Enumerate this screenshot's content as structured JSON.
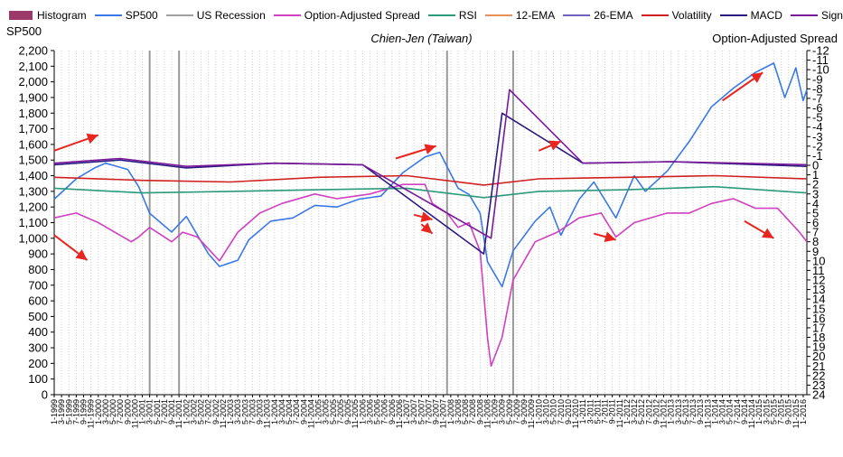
{
  "chart_data": {
    "type": "line",
    "title": "Chien-Jen (Taiwan)",
    "legend": [
      {
        "name": "Histogram",
        "color": "#9b3a6a",
        "style": "box"
      },
      {
        "name": "SP500",
        "color": "#3a78e8",
        "style": "line"
      },
      {
        "name": "US Recession",
        "color": "#a0a0a0",
        "style": "line"
      },
      {
        "name": "Option-Adjusted Spread",
        "color": "#d040c0",
        "style": "line"
      },
      {
        "name": "RSI",
        "color": "#2a9a7a",
        "style": "line"
      },
      {
        "name": "12-EMA",
        "color": "#e8905a",
        "style": "line"
      },
      {
        "name": "26-EMA",
        "color": "#7060c0",
        "style": "line"
      },
      {
        "name": "Volatility",
        "color": "#d02020",
        "style": "line"
      },
      {
        "name": "MACD",
        "color": "#2c1a80",
        "style": "line"
      },
      {
        "name": "Signal",
        "color": "#7a1a9a",
        "style": "line"
      }
    ],
    "y_left": {
      "label": "SP500",
      "range": [
        0,
        2200
      ],
      "ticks": [
        "0",
        "100",
        "200",
        "300",
        "400",
        "500",
        "600",
        "700",
        "800",
        "900",
        "1,000",
        "1,100",
        "1,200",
        "1,300",
        "1,400",
        "1,500",
        "1,600",
        "1,700",
        "1,800",
        "1,900",
        "2,000",
        "2,100",
        "2,200"
      ]
    },
    "y_right": {
      "label": "Option-Adjusted Spread",
      "range": [
        -12,
        24
      ],
      "inverted": true,
      "ticks": [
        "-12",
        "-11",
        "-10",
        "-9",
        "-8",
        "-7",
        "-6",
        "-5",
        "-4",
        "-3",
        "-2",
        "-1",
        "0",
        "1",
        "2",
        "3",
        "4",
        "5",
        "6",
        "7",
        "8",
        "9",
        "10",
        "11",
        "12",
        "13",
        "14",
        "15",
        "16",
        "17",
        "18",
        "19",
        "20",
        "21",
        "22",
        "23",
        "24"
      ]
    },
    "x": {
      "start": "1-1999",
      "end": "2-2016",
      "tick_labels": [
        "1-1999",
        "3-1999",
        "5-1999",
        "7-1999",
        "9-1999",
        "11-1999",
        "1-2000",
        "3-2000",
        "5-2000",
        "7-2000",
        "9-2000",
        "11-2000",
        "1-2001",
        "3-2001",
        "5-2001",
        "7-2001",
        "9-2001",
        "11-2001",
        "1-2002",
        "3-2002",
        "5-2002",
        "7-2002",
        "9-2002",
        "11-2002",
        "1-2003",
        "3-2003",
        "5-2003",
        "7-2003",
        "9-2003",
        "11-2003",
        "1-2004",
        "3-2004",
        "5-2004",
        "7-2004",
        "9-2004",
        "11-2004",
        "1-2005",
        "3-2005",
        "5-2005",
        "7-2005",
        "9-2005",
        "11-2005",
        "1-2006",
        "3-2006",
        "5-2006",
        "7-2006",
        "9-2006",
        "11-2006",
        "1-2007",
        "3-2007",
        "5-2007",
        "7-2007",
        "9-2007",
        "11-2007",
        "1-2008",
        "3-2008",
        "5-2008",
        "7-2008",
        "9-2008",
        "11-2008",
        "1-2009",
        "3-2009",
        "5-2009",
        "7-2009",
        "9-2009",
        "11-2009",
        "1-2010",
        "3-2010",
        "5-2010",
        "7-2010",
        "9-2010",
        "11-2010",
        "1-2011",
        "3-2011",
        "5-2011",
        "7-2011",
        "9-2011",
        "11-2011",
        "1-2012",
        "3-2012",
        "5-2012",
        "7-2012",
        "9-2012",
        "11-2012",
        "1-2013",
        "3-2013",
        "5-2013",
        "7-2013",
        "9-2013",
        "11-2013",
        "1-2014",
        "3-2014",
        "5-2014",
        "7-2014",
        "9-2014",
        "11-2014",
        "1-2015",
        "3-2015",
        "5-2015",
        "7-2015",
        "9-2015",
        "11-2015",
        "1-2016"
      ]
    },
    "grid": "vertical",
    "recessions": [
      [
        "3-2001",
        "11-2001"
      ],
      [
        "12-2007",
        "6-2009"
      ]
    ],
    "series": [
      {
        "name": "SP500",
        "axis": "left",
        "color": "#3a78e8",
        "points": [
          [
            "1-1999",
            1250
          ],
          [
            "7-1999",
            1380
          ],
          [
            "12-1999",
            1450
          ],
          [
            "3-2000",
            1480
          ],
          [
            "9-2000",
            1440
          ],
          [
            "12-2000",
            1330
          ],
          [
            "3-2001",
            1160
          ],
          [
            "9-2001",
            1040
          ],
          [
            "1-2002",
            1140
          ],
          [
            "7-2002",
            900
          ],
          [
            "10-2002",
            820
          ],
          [
            "3-2003",
            860
          ],
          [
            "6-2003",
            990
          ],
          [
            "12-2003",
            1110
          ],
          [
            "6-2004",
            1130
          ],
          [
            "12-2004",
            1210
          ],
          [
            "6-2005",
            1200
          ],
          [
            "12-2005",
            1250
          ],
          [
            "6-2006",
            1270
          ],
          [
            "12-2006",
            1420
          ],
          [
            "6-2007",
            1520
          ],
          [
            "10-2007",
            1550
          ],
          [
            "3-2008",
            1320
          ],
          [
            "6-2008",
            1280
          ],
          [
            "9-2008",
            1160
          ],
          [
            "11-2008",
            850
          ],
          [
            "3-2009",
            690
          ],
          [
            "6-2009",
            920
          ],
          [
            "12-2009",
            1110
          ],
          [
            "4-2010",
            1200
          ],
          [
            "7-2010",
            1020
          ],
          [
            "12-2010",
            1250
          ],
          [
            "4-2011",
            1360
          ],
          [
            "10-2011",
            1130
          ],
          [
            "3-2012",
            1400
          ],
          [
            "6-2012",
            1300
          ],
          [
            "12-2012",
            1430
          ],
          [
            "6-2013",
            1620
          ],
          [
            "12-2013",
            1840
          ],
          [
            "6-2014",
            1960
          ],
          [
            "12-2014",
            2060
          ],
          [
            "5-2015",
            2120
          ],
          [
            "8-2015",
            1900
          ],
          [
            "11-2015",
            2090
          ],
          [
            "1-2016",
            1880
          ],
          [
            "2-2016",
            1950
          ]
        ]
      },
      {
        "name": "Option-Adjusted Spread",
        "axis": "right",
        "color": "#d040c0",
        "points": [
          [
            "1-1999",
            5.5
          ],
          [
            "7-1999",
            5
          ],
          [
            "1-2000",
            6
          ],
          [
            "10-2000",
            8
          ],
          [
            "12-2000",
            7.5
          ],
          [
            "3-2001",
            6.5
          ],
          [
            "9-2001",
            8
          ],
          [
            "12-2001",
            7
          ],
          [
            "4-2002",
            7.5
          ],
          [
            "10-2002",
            10
          ],
          [
            "3-2003",
            7
          ],
          [
            "9-2003",
            5
          ],
          [
            "3-2004",
            4
          ],
          [
            "12-2004",
            3
          ],
          [
            "6-2005",
            3.5
          ],
          [
            "3-2006",
            3
          ],
          [
            "12-2006",
            2
          ],
          [
            "6-2007",
            2
          ],
          [
            "8-2007",
            4
          ],
          [
            "12-2007",
            5
          ],
          [
            "3-2008",
            6.5
          ],
          [
            "6-2008",
            6
          ],
          [
            "9-2008",
            9
          ],
          [
            "11-2008",
            18
          ],
          [
            "12-2008",
            21
          ],
          [
            "3-2009",
            18
          ],
          [
            "6-2009",
            12
          ],
          [
            "12-2009",
            8
          ],
          [
            "6-2010",
            7
          ],
          [
            "12-2010",
            5.5
          ],
          [
            "6-2011",
            5
          ],
          [
            "10-2011",
            7.5
          ],
          [
            "3-2012",
            6
          ],
          [
            "12-2012",
            5
          ],
          [
            "6-2013",
            5
          ],
          [
            "12-2013",
            4
          ],
          [
            "6-2014",
            3.5
          ],
          [
            "12-2014",
            4.5
          ],
          [
            "6-2015",
            4.5
          ],
          [
            "12-2015",
            7
          ],
          [
            "2-2016",
            8
          ]
        ]
      },
      {
        "name": "Volatility",
        "axis": "left",
        "color": "#d02020",
        "points": [
          [
            "1-1999",
            1390
          ],
          [
            "1-2001",
            1370
          ],
          [
            "1-2003",
            1360
          ],
          [
            "1-2005",
            1390
          ],
          [
            "1-2007",
            1400
          ],
          [
            "10-2008",
            1340
          ],
          [
            "1-2010",
            1380
          ],
          [
            "1-2012",
            1390
          ],
          [
            "1-2014",
            1400
          ],
          [
            "2-2016",
            1380
          ]
        ]
      },
      {
        "name": "RSI",
        "axis": "left",
        "color": "#2a9a7a",
        "points": [
          [
            "1-1999",
            1320
          ],
          [
            "1-2001",
            1290
          ],
          [
            "1-2003",
            1300
          ],
          [
            "1-2005",
            1310
          ],
          [
            "1-2007",
            1320
          ],
          [
            "10-2008",
            1260
          ],
          [
            "1-2010",
            1300
          ],
          [
            "1-2012",
            1310
          ],
          [
            "1-2014",
            1330
          ],
          [
            "2-2016",
            1290
          ]
        ]
      },
      {
        "name": "MACD",
        "axis": "left",
        "color": "#2c1a80",
        "points": [
          [
            "1-1999",
            1470
          ],
          [
            "7-2000",
            1500
          ],
          [
            "1-2002",
            1450
          ],
          [
            "1-2004",
            1480
          ],
          [
            "1-2006",
            1470
          ],
          [
            "10-2008",
            900
          ],
          [
            "3-2009",
            1800
          ],
          [
            "1-2011",
            1480
          ],
          [
            "1-2013",
            1490
          ],
          [
            "2-2016",
            1460
          ]
        ]
      },
      {
        "name": "Signal",
        "axis": "left",
        "color": "#7a1a9a",
        "points": [
          [
            "1-1999",
            1480
          ],
          [
            "7-2000",
            1510
          ],
          [
            "1-2002",
            1460
          ],
          [
            "1-2004",
            1480
          ],
          [
            "1-2006",
            1470
          ],
          [
            "12-2008",
            1000
          ],
          [
            "5-2009",
            1950
          ],
          [
            "1-2011",
            1480
          ],
          [
            "1-2013",
            1490
          ],
          [
            "2-2016",
            1470
          ]
        ]
      }
    ],
    "annotations": [
      {
        "type": "arrow",
        "color": "#e8251f",
        "from": [
          "1-1999",
          1560
        ],
        "to": [
          "1-2000",
          1660
        ]
      },
      {
        "type": "arrow",
        "color": "#e8251f",
        "from": [
          "1-1999",
          1020
        ],
        "to": [
          "10-1999",
          860
        ]
      },
      {
        "type": "arrow",
        "color": "#e8251f",
        "from": [
          "10-2006",
          1510
        ],
        "to": [
          "9-2007",
          1590
        ]
      },
      {
        "type": "arrow",
        "color": "#e8251f",
        "from": [
          "3-2007",
          1150
        ],
        "to": [
          "8-2007",
          1120
        ]
      },
      {
        "type": "arrow",
        "color": "#e8251f",
        "from": [
          "5-2007",
          1090
        ],
        "to": [
          "8-2007",
          1030
        ]
      },
      {
        "type": "arrow",
        "color": "#e8251f",
        "from": [
          "1-2010",
          1560
        ],
        "to": [
          "7-2010",
          1620
        ]
      },
      {
        "type": "arrow",
        "color": "#e8251f",
        "from": [
          "4-2011",
          1030
        ],
        "to": [
          "10-2011",
          990
        ]
      },
      {
        "type": "arrow",
        "color": "#e8251f",
        "from": [
          "3-2014",
          1880
        ],
        "to": [
          "2-2015",
          2060
        ]
      },
      {
        "type": "arrow",
        "color": "#e8251f",
        "from": [
          "9-2014",
          1110
        ],
        "to": [
          "5-2015",
          1000
        ]
      }
    ]
  }
}
